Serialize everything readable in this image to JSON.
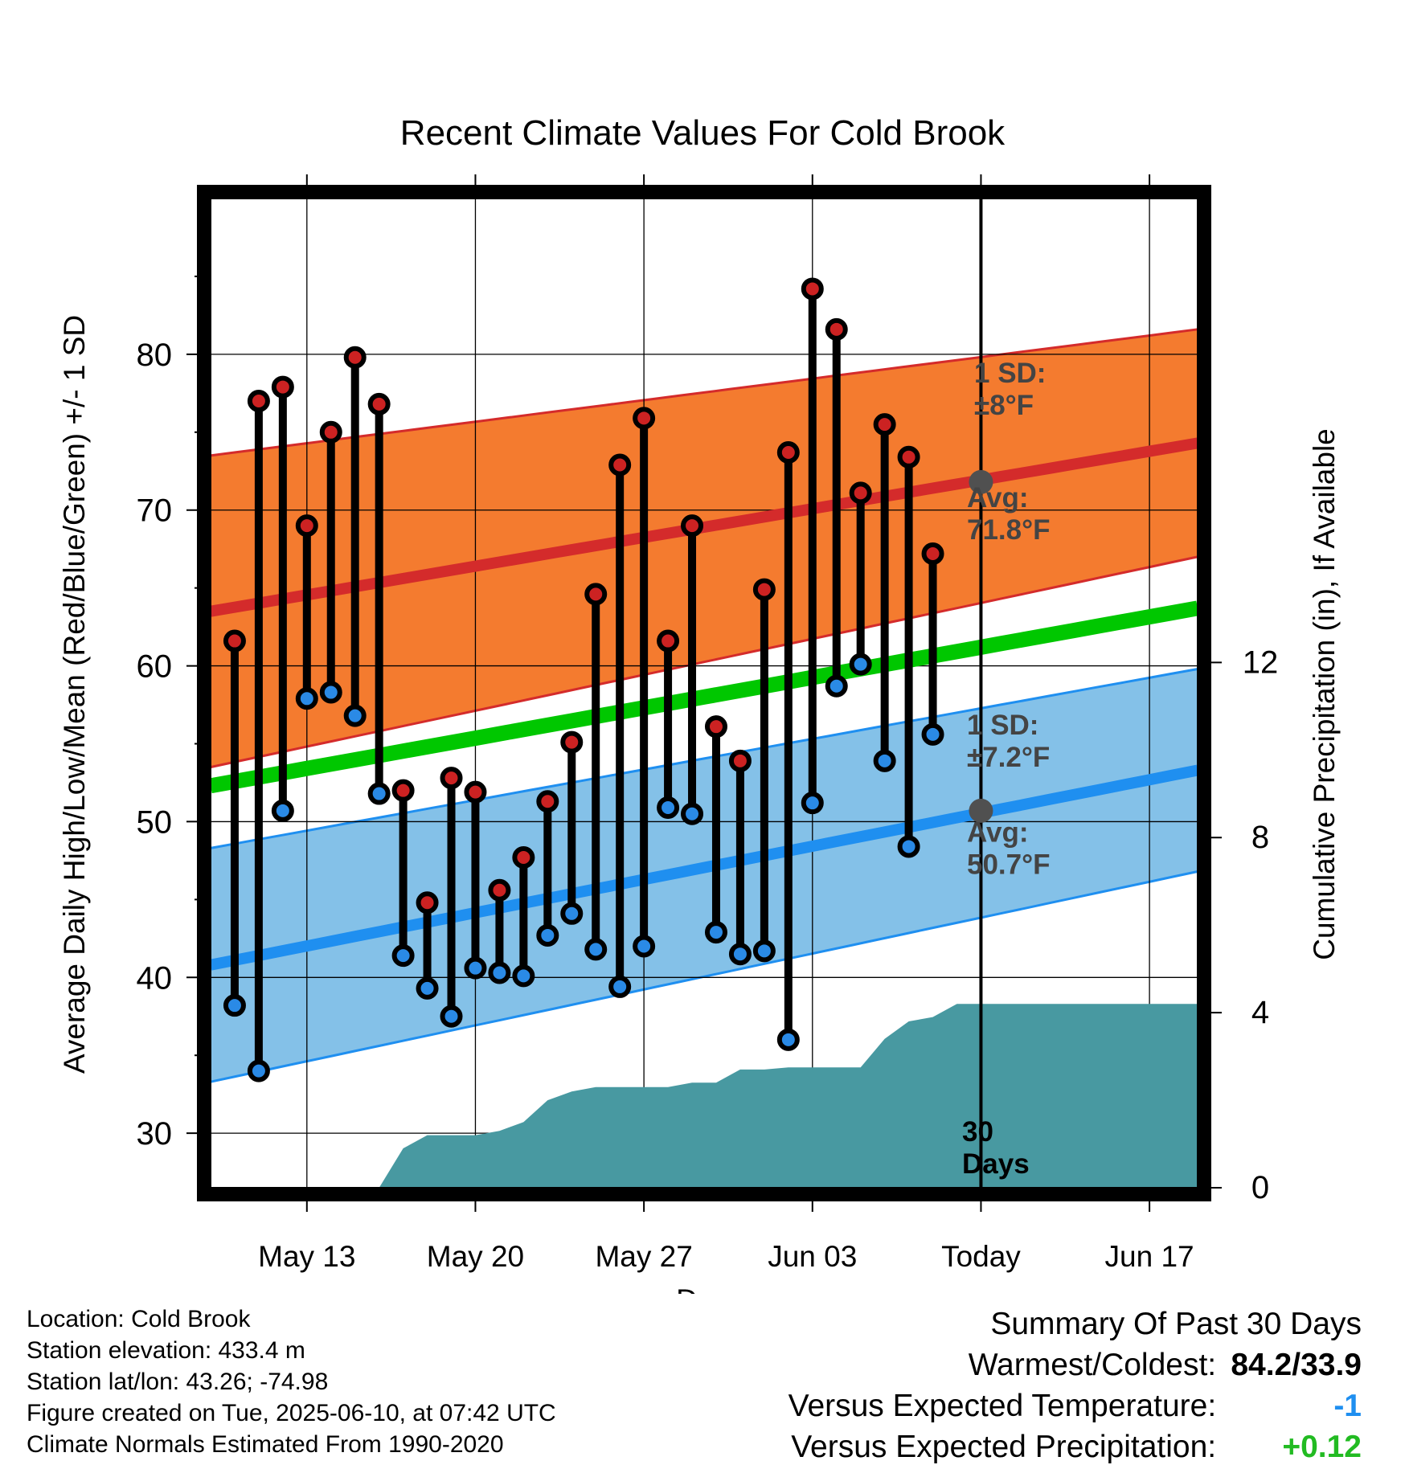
{
  "chart_data": {
    "type": "line",
    "title": "Recent Climate Values For Cold Brook",
    "xlabel": "Day",
    "ylabel": "Average Daily High/Low/Mean (Red/Blue/Green) +/- 1 SD",
    "y2label": "Cumulative Precipitation (in), If Available",
    "x_range": [
      "2025-05-09",
      "2025-06-19"
    ],
    "ylim": [
      26.5,
      90
    ],
    "y2lim": [
      0,
      22.6
    ],
    "y_ticks": [
      30,
      40,
      50,
      60,
      70,
      80
    ],
    "y2_ticks": [
      0,
      4,
      8,
      12
    ],
    "x_ticks": [
      {
        "date": "2025-05-13",
        "label": "May 13"
      },
      {
        "date": "2025-05-20",
        "label": "May 20"
      },
      {
        "date": "2025-05-27",
        "label": "May 27"
      },
      {
        "date": "2025-06-03",
        "label": "Jun 03"
      },
      {
        "date": "2025-06-10",
        "label": "Today"
      },
      {
        "date": "2025-06-17",
        "label": "Jun 17"
      }
    ],
    "today": "2025-06-10",
    "colors": {
      "high_band": "#f47b2f",
      "high_line": "#d42b2b",
      "low_band": "#84c1e8",
      "low_line": "#1f8ff0",
      "mean_line": "#00c700",
      "precip": "#4899a1",
      "high_dot": "#cc2222",
      "low_dot": "#2a8ae6",
      "avg_dot": "#505050"
    },
    "normals": {
      "high_mean": {
        "start": 63.5,
        "end": 74.3
      },
      "high_sd": {
        "start": 10.0,
        "end": 7.3
      },
      "low_mean": {
        "start": 40.8,
        "end": 53.3
      },
      "low_sd": {
        "start": 7.5,
        "end": 6.5
      },
      "mean": {
        "start": 52.3,
        "end": 63.7
      }
    },
    "daily": {
      "dates": [
        "2025-05-10",
        "2025-05-11",
        "2025-05-12",
        "2025-05-13",
        "2025-05-14",
        "2025-05-15",
        "2025-05-16",
        "2025-05-17",
        "2025-05-18",
        "2025-05-19",
        "2025-05-20",
        "2025-05-21",
        "2025-05-22",
        "2025-05-23",
        "2025-05-24",
        "2025-05-25",
        "2025-05-26",
        "2025-05-27",
        "2025-05-28",
        "2025-05-29",
        "2025-05-30",
        "2025-05-31",
        "2025-06-01",
        "2025-06-02",
        "2025-06-03",
        "2025-06-04",
        "2025-06-05",
        "2025-06-06",
        "2025-06-07",
        "2025-06-08",
        "2025-06-09"
      ],
      "high": [
        61.6,
        77.0,
        77.9,
        69.0,
        75.0,
        79.8,
        76.8,
        52.0,
        44.8,
        52.8,
        51.9,
        45.6,
        47.7,
        51.3,
        55.1,
        64.6,
        72.9,
        75.9,
        61.6,
        69.0,
        56.1,
        53.9,
        64.9,
        73.7,
        84.2,
        81.6,
        71.1,
        75.5,
        73.4,
        67.2,
        null
      ],
      "low": [
        38.2,
        34.0,
        50.7,
        57.9,
        58.3,
        56.8,
        51.8,
        41.4,
        39.3,
        37.5,
        40.6,
        40.3,
        40.1,
        42.7,
        44.1,
        41.8,
        39.4,
        42.0,
        50.9,
        50.5,
        42.9,
        41.5,
        41.7,
        36.0,
        51.2,
        58.7,
        60.1,
        53.9,
        48.4,
        55.6,
        null
      ]
    },
    "precip_cumulative": {
      "dates": [
        "2025-05-12",
        "2025-05-13",
        "2025-05-14",
        "2025-05-15",
        "2025-05-16",
        "2025-05-17",
        "2025-05-18",
        "2025-05-19",
        "2025-05-20",
        "2025-05-21",
        "2025-05-22",
        "2025-05-23",
        "2025-05-24",
        "2025-05-25",
        "2025-05-26",
        "2025-05-27",
        "2025-05-28",
        "2025-05-29",
        "2025-05-30",
        "2025-05-31",
        "2025-06-01",
        "2025-06-02",
        "2025-06-03",
        "2025-06-04",
        "2025-06-05",
        "2025-06-06",
        "2025-06-07",
        "2025-06-08",
        "2025-06-09",
        "2025-06-10",
        "2025-06-19"
      ],
      "values": [
        0,
        0,
        0,
        0,
        0,
        0.9,
        1.2,
        1.2,
        1.2,
        1.3,
        1.5,
        2.0,
        2.2,
        2.3,
        2.3,
        2.3,
        2.3,
        2.4,
        2.4,
        2.7,
        2.7,
        2.75,
        2.75,
        2.75,
        2.75,
        3.4,
        3.8,
        3.9,
        4.2,
        4.2,
        4.2
      ]
    },
    "annotations": {
      "high_sd_label": [
        "1 SD:",
        "±8°F"
      ],
      "high_avg_label": [
        "Avg:",
        "71.8°F"
      ],
      "low_sd_label": [
        "1 SD:",
        "±7.2°F"
      ],
      "low_avg_label": [
        "Avg:",
        "50.7°F"
      ],
      "days_label": [
        "30",
        "Days"
      ],
      "high_avg_value": 71.8,
      "low_avg_value": 50.7
    }
  },
  "info": {
    "location": "Location: Cold Brook",
    "elevation": "Station elevation: 433.4 m",
    "latlon": "Station lat/lon: 43.26; -74.98",
    "created": "Figure created on Tue, 2025-06-10, at 07:42 UTC",
    "normals": "Climate Normals Estimated From 1990-2020"
  },
  "summary": {
    "title": "Summary Of Past 30 Days",
    "warmest_label": "Warmest/Coldest:",
    "warmest_value": "84.2/33.9",
    "temp_label": "Versus Expected Temperature:",
    "temp_value": "-1",
    "temp_color": "#1f8ff0",
    "precip_label": "Versus Expected Precipitation:",
    "precip_value": "+0.12",
    "precip_color": "#22bb22"
  }
}
